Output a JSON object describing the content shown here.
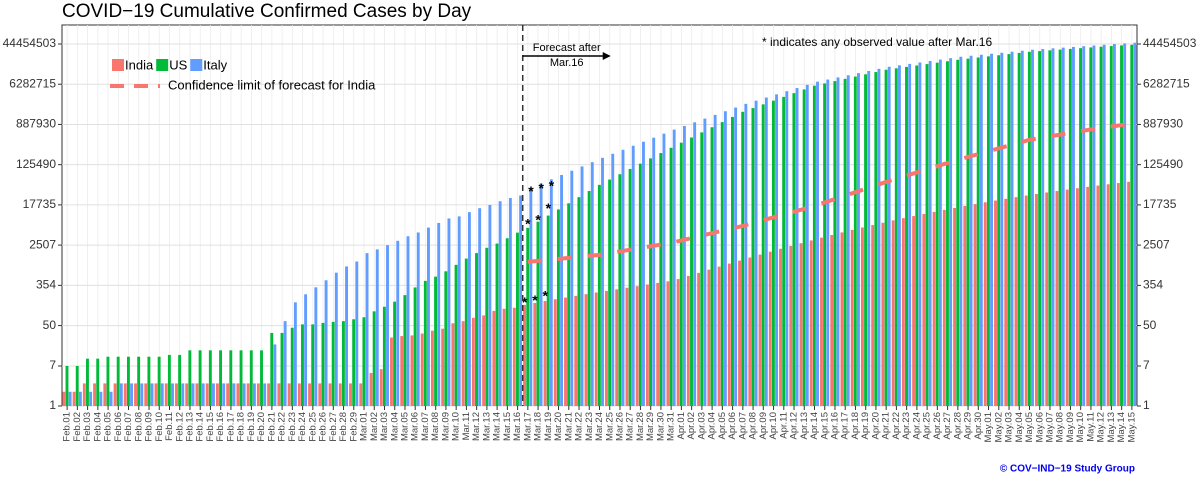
{
  "chart_data": {
    "type": "bar",
    "title": "COVID−19 Cumulative Confirmed Cases by Day",
    "log": true,
    "grid": true,
    "legend": "top-left",
    "categories": [
      "Feb.01",
      "Feb.02",
      "Feb.03",
      "Feb.04",
      "Feb.05",
      "Feb.06",
      "Feb.07",
      "Feb.08",
      "Feb.09",
      "Feb.10",
      "Feb.11",
      "Feb.12",
      "Feb.13",
      "Feb.14",
      "Feb.15",
      "Feb.16",
      "Feb.17",
      "Feb.18",
      "Feb.19",
      "Feb.20",
      "Feb.21",
      "Feb.22",
      "Feb.23",
      "Feb.24",
      "Feb.25",
      "Feb.26",
      "Feb.27",
      "Feb.28",
      "Feb.29",
      "Mar.01",
      "Mar.02",
      "Mar.03",
      "Mar.04",
      "Mar.05",
      "Mar.06",
      "Mar.07",
      "Mar.08",
      "Mar.09",
      "Mar.10",
      "Mar.11",
      "Mar.12",
      "Mar.13",
      "Mar.14",
      "Mar.15",
      "Mar.16",
      "Mar.17",
      "Mar.18",
      "Mar.19",
      "Mar.20",
      "Mar.21",
      "Mar.22",
      "Mar.23",
      "Mar.24",
      "Mar.25",
      "Mar.26",
      "Mar.27",
      "Mar.28",
      "Mar.29",
      "Mar.30",
      "Mar.31",
      "Apr.01",
      "Apr.02",
      "Apr.03",
      "Apr.04",
      "Apr.05",
      "Apr.06",
      "Apr.07",
      "Apr.08",
      "Apr.09",
      "Apr.10",
      "Apr.11",
      "Apr.12",
      "Apr.13",
      "Apr.14",
      "Apr.15",
      "Apr.16",
      "Apr.17",
      "Apr.18",
      "Apr.19",
      "Apr.20",
      "Apr.21",
      "Apr.22",
      "Apr.23",
      "Apr.24",
      "Apr.25",
      "Apr.26",
      "Apr.27",
      "Apr.28",
      "Apr.29",
      "Apr.30",
      "May.01",
      "May.02",
      "May.03",
      "May.04",
      "May.05",
      "May.06",
      "May.07",
      "May.08",
      "May.09",
      "May.10",
      "May.11",
      "May.12",
      "May.13",
      "May.14",
      "May.15"
    ],
    "series": [
      {
        "name": "India",
        "color": "#f8766d",
        "values": [
          2,
          2,
          3,
          3,
          3,
          3,
          3,
          3,
          3,
          3,
          3,
          3,
          3,
          3,
          3,
          3,
          3,
          3,
          3,
          3,
          3,
          3,
          3,
          3,
          3,
          3,
          3,
          3,
          3,
          3,
          5,
          6,
          28,
          30,
          31,
          34,
          39,
          43,
          56,
          62,
          73,
          82,
          102,
          113,
          119,
          137,
          150,
          165,
          180,
          195,
          212,
          230,
          250,
          270,
          292,
          315,
          340,
          368,
          398,
          430,
          480,
          560,
          650,
          760,
          880,
          1020,
          1180,
          1370,
          1580,
          1820,
          2100,
          2400,
          2750,
          3150,
          3600,
          4100,
          4650,
          5250,
          5900,
          6650,
          7450,
          8350,
          9300,
          10300,
          11400,
          12600,
          13900,
          15300,
          16800,
          18400,
          20100,
          21900,
          23800,
          25800,
          27900,
          30100,
          32400,
          34800,
          37300,
          39900,
          42600,
          45400,
          48300,
          51300,
          54400
        ],
        "observed": [
          null,
          null,
          null,
          null,
          null,
          null,
          null,
          null,
          null,
          null,
          null,
          null,
          null,
          null,
          null,
          null,
          null,
          null,
          null,
          null,
          null,
          null,
          null,
          null,
          null,
          null,
          null,
          null,
          null,
          null,
          null,
          null,
          null,
          null,
          null,
          null,
          null,
          null,
          null,
          null,
          null,
          null,
          null,
          null,
          null,
          142,
          156,
          194,
          null,
          null,
          null,
          null,
          null,
          null,
          null,
          null,
          null,
          null,
          null,
          null,
          null,
          null,
          null,
          null,
          null,
          null,
          null,
          null,
          null,
          null,
          null,
          null,
          null,
          null,
          null,
          null,
          null,
          null,
          null,
          null,
          null,
          null,
          null,
          null,
          null,
          null,
          null,
          null,
          null,
          null,
          null,
          null,
          null,
          null,
          null,
          null,
          null,
          null,
          null,
          null,
          null
        ]
      },
      {
        "name": "US",
        "color": "#00ba38",
        "values": [
          7,
          7,
          10,
          10,
          11,
          11,
          11,
          11,
          11,
          11,
          12,
          12,
          15,
          15,
          15,
          15,
          15,
          15,
          15,
          15,
          35,
          35,
          45,
          53,
          53,
          57,
          60,
          62,
          68,
          75,
          100,
          125,
          160,
          220,
          320,
          440,
          540,
          700,
          960,
          1300,
          1700,
          2200,
          2700,
          3500,
          4600,
          5800,
          7820,
          10540,
          14200,
          19150,
          25800,
          34800,
          47000,
          60800,
          78700,
          101800,
          131700,
          170400,
          220500,
          285000,
          366000,
          470000,
          603000,
          775000,
          995000,
          1278000,
          1640000,
          1967000,
          2358000,
          2828000,
          3391000,
          4066000,
          4876000,
          5850000,
          6535000,
          7300000,
          8154000,
          9108000,
          10170000,
          11360000,
          12700000,
          13600000,
          14570000,
          15600000,
          16710000,
          17900000,
          19170000,
          20600000,
          21780000,
          23020000,
          24330000,
          25720000,
          27190000,
          28740000,
          30400000,
          31500000,
          32630000,
          33810000,
          35030000,
          36290000,
          37600000,
          39000000,
          40200000,
          41500000,
          42800000
        ],
        "observed": [
          null,
          null,
          null,
          null,
          null,
          null,
          null,
          null,
          null,
          null,
          null,
          null,
          null,
          null,
          null,
          null,
          null,
          null,
          null,
          null,
          null,
          null,
          null,
          null,
          null,
          null,
          null,
          null,
          null,
          null,
          null,
          null,
          null,
          null,
          null,
          null,
          null,
          null,
          null,
          null,
          null,
          null,
          null,
          null,
          null,
          6421,
          7786,
          13680,
          null,
          null,
          null,
          null,
          null,
          null,
          null,
          null,
          null,
          null,
          null,
          null,
          null,
          null,
          null,
          null,
          null,
          null,
          null,
          null,
          null,
          null,
          null,
          null,
          null,
          null,
          null,
          null,
          null,
          null,
          null,
          null,
          null,
          null,
          null,
          null,
          null,
          null,
          null,
          null,
          null,
          null,
          null,
          null,
          null,
          null,
          null,
          null,
          null,
          null,
          null,
          null,
          null
        ]
      },
      {
        "name": "Italy",
        "color": "#619cff",
        "values": [
          2,
          2,
          2,
          2,
          2,
          3,
          3,
          3,
          3,
          3,
          3,
          3,
          3,
          3,
          3,
          3,
          3,
          3,
          3,
          3,
          20,
          62,
          155,
          229,
          322,
          453,
          655,
          888,
          1128,
          1694,
          2036,
          2502,
          3089,
          3858,
          4636,
          5883,
          7375,
          9172,
          10149,
          12462,
          15113,
          17660,
          21157,
          24747,
          27980,
          40600,
          50000,
          61600,
          75900,
          93500,
          115200,
          141900,
          175000,
          213000,
          259000,
          315000,
          383000,
          466000,
          567000,
          690000,
          825000,
          987000,
          1180000,
          1411000,
          1688000,
          2019000,
          2420000,
          2822000,
          3290000,
          3836000,
          4473000,
          5216000,
          6082000,
          7100000,
          7880000,
          8750000,
          9710000,
          10780000,
          11970000,
          13280000,
          14700000,
          15760000,
          16890000,
          18110000,
          19410000,
          20810000,
          22310000,
          23900000,
          25100000,
          26350000,
          27670000,
          29050000,
          30500000,
          32030000,
          33600000,
          34780000,
          36000000,
          37260000,
          38560000,
          39910000,
          41310000,
          42800000,
          44300000,
          45800000,
          47300000
        ],
        "observed": [
          null,
          null,
          null,
          null,
          null,
          null,
          null,
          null,
          null,
          null,
          null,
          null,
          null,
          null,
          null,
          null,
          null,
          null,
          null,
          null,
          null,
          null,
          null,
          null,
          null,
          null,
          null,
          null,
          null,
          null,
          null,
          null,
          null,
          null,
          null,
          null,
          null,
          null,
          null,
          null,
          null,
          null,
          null,
          null,
          null,
          31506,
          35713,
          41035,
          null,
          null,
          null,
          null,
          null,
          null,
          null,
          null,
          null,
          null,
          null,
          null,
          null,
          null,
          null,
          null,
          null,
          null,
          null,
          null,
          null,
          null,
          null,
          null,
          null,
          null,
          null,
          null,
          null,
          null,
          null,
          null,
          null,
          null,
          null,
          null,
          null,
          null,
          null,
          null,
          null,
          null,
          null,
          null,
          null,
          null,
          null,
          null,
          null,
          null,
          null,
          null,
          null
        ]
      }
    ],
    "confidence_limit": {
      "name": "Confidence limit of forecast for India",
      "color": "#f8766d",
      "values": [
        null,
        null,
        null,
        null,
        null,
        null,
        null,
        null,
        null,
        null,
        null,
        null,
        null,
        null,
        null,
        null,
        null,
        null,
        null,
        null,
        null,
        null,
        null,
        null,
        null,
        null,
        null,
        null,
        null,
        null,
        null,
        null,
        null,
        null,
        null,
        null,
        null,
        null,
        null,
        null,
        null,
        null,
        null,
        null,
        null,
        1108,
        1163,
        1221,
        1282,
        1346,
        1414,
        1485,
        1560,
        1696,
        1843,
        2004,
        2178,
        2368,
        2574,
        2790,
        3142,
        3538,
        3983,
        4485,
        5050,
        5687,
        6380,
        7330,
        8420,
        9670,
        11110,
        12770,
        14670,
        16900,
        19960,
        23570,
        27840,
        32880,
        38830,
        45860,
        54300,
        63300,
        73800,
        86100,
        100400,
        117000,
        136400,
        159000,
        182700,
        209900,
        241200,
        277100,
        318400,
        365800,
        420000,
        457000,
        497000,
        541000,
        588000,
        640000,
        696000,
        757000,
        805000,
        860000,
        920000
      ]
    },
    "observed_marker": "*",
    "ylim": [
      1,
      112000000
    ],
    "yticks": [
      1,
      7,
      50,
      354,
      2507,
      17735,
      125490,
      887930,
      6282715,
      44454503
    ],
    "forecast_annotation": [
      "Forecast after",
      "Mar.16"
    ],
    "note": "* indicates any observed value after Mar.16",
    "credit": "© COV−IND−19 Study Group"
  }
}
